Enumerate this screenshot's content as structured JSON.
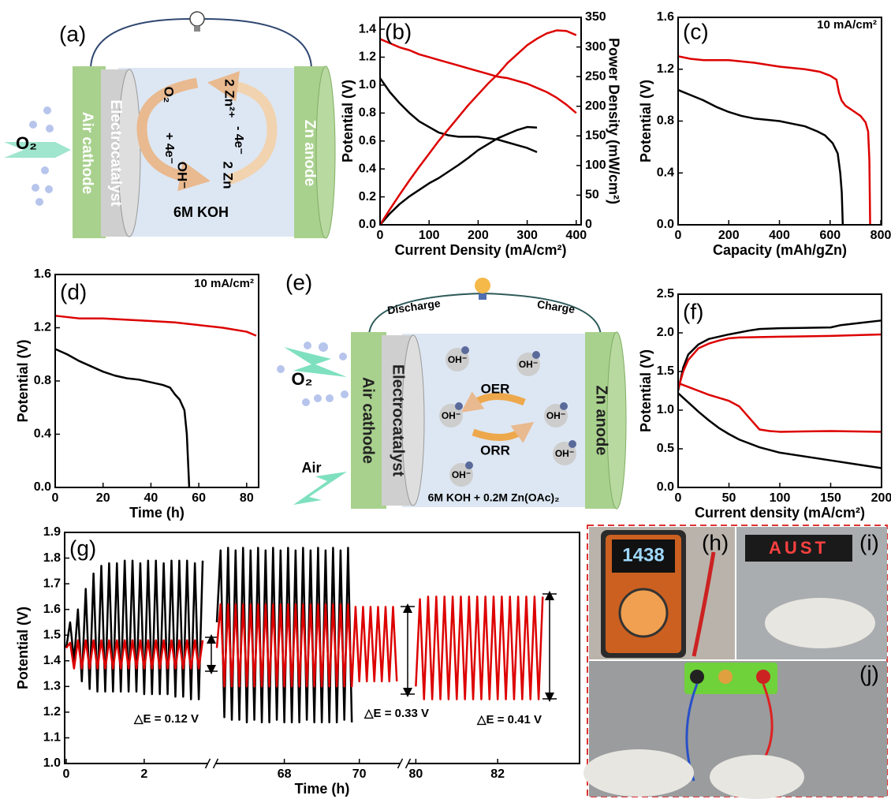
{
  "chart_data": [
    {
      "type": "line",
      "panel": "(b)",
      "xlabel": "Current Density (mA/cm²)",
      "ylabel": "Potential (V)",
      "y2label": "Power Density (mW/cm²)",
      "xlim": [
        0,
        410
      ],
      "ylim": [
        0,
        1.485
      ],
      "y2lim": [
        0,
        350
      ],
      "xticks": [
        0,
        100,
        200,
        300,
        400
      ],
      "yticks": [
        {
          "value": 0,
          "label": "0.0"
        },
        0.2,
        0.4,
        0.6,
        0.8,
        {
          "value": 1,
          "label": "1.0"
        },
        1.2,
        1.4
      ],
      "y2ticks": [
        0,
        50,
        100,
        150,
        200,
        250,
        300,
        350
      ],
      "x": [
        0,
        20,
        40,
        60,
        80,
        100,
        120,
        140,
        160,
        180,
        200,
        220,
        240,
        260,
        280,
        300,
        320,
        340,
        360,
        380,
        400
      ],
      "series": [
        {
          "color": "#000000",
          "values": [
            1.05,
            0.95,
            0.87,
            0.8,
            0.74,
            0.7,
            0.66,
            0.64,
            0.63,
            0.63,
            0.63,
            0.62,
            0.61,
            0.59,
            0.57,
            0.55,
            0.52,
            null,
            null,
            null,
            null
          ]
        },
        {
          "color": "#dd0000",
          "values": [
            1.33,
            1.3,
            1.27,
            1.25,
            1.22,
            1.2,
            1.18,
            1.16,
            1.14,
            1.12,
            1.1,
            1.08,
            1.06,
            1.05,
            1.03,
            1.01,
            0.98,
            0.95,
            0.91,
            0.86,
            0.8
          ]
        },
        {
          "color": "#000000",
          "axis": "y2",
          "values": [
            0,
            19,
            35,
            48,
            59,
            70,
            79,
            90,
            101,
            113,
            126,
            136,
            146,
            153,
            160,
            165,
            164,
            null,
            null,
            null,
            null
          ]
        },
        {
          "color": "#dd0000",
          "axis": "y2",
          "values": [
            0,
            26,
            51,
            75,
            98,
            120,
            142,
            162,
            182,
            202,
            220,
            238,
            254,
            273,
            288,
            303,
            314,
            323,
            328,
            327,
            320
          ]
        }
      ]
    },
    {
      "type": "line",
      "panel": "(c)",
      "annotation": "10 mA/cm²",
      "xlabel": "Capacity (mAh/gZn)",
      "ylabel": "Potential (V)",
      "xlim": [
        0,
        803
      ],
      "ylim": [
        0,
        1.6
      ],
      "xticks": [
        0,
        200,
        400,
        600,
        800
      ],
      "yticks": [
        {
          "value": 0,
          "label": "0.0"
        },
        0.4,
        0.8,
        1.2,
        1.6
      ],
      "series": [
        {
          "color": "#000000",
          "x": [
            0,
            50,
            100,
            150,
            200,
            250,
            300,
            350,
            400,
            450,
            500,
            550,
            580,
            610,
            630,
            640,
            646,
            650
          ],
          "values": [
            1.04,
            1.0,
            0.96,
            0.91,
            0.87,
            0.84,
            0.82,
            0.81,
            0.8,
            0.78,
            0.76,
            0.72,
            0.69,
            0.63,
            0.55,
            0.4,
            0.25,
            0
          ]
        },
        {
          "color": "#dd0000",
          "x": [
            0,
            50,
            100,
            200,
            300,
            400,
            500,
            560,
            600,
            625,
            635,
            645,
            660,
            690,
            720,
            740,
            750,
            755,
            758
          ],
          "values": [
            1.3,
            1.28,
            1.27,
            1.27,
            1.25,
            1.22,
            1.2,
            1.18,
            1.15,
            1.12,
            1.02,
            0.96,
            0.92,
            0.88,
            0.84,
            0.79,
            0.72,
            0.5,
            0
          ]
        }
      ]
    },
    {
      "type": "line",
      "panel": "(d)",
      "annotation": "10 mA/cm²",
      "xlabel": "Time (h)",
      "ylabel": "Potential (V)",
      "xlim": [
        0,
        85
      ],
      "ylim": [
        0,
        1.6
      ],
      "xticks": [
        0,
        20,
        40,
        60,
        80
      ],
      "yticks": [
        {
          "value": 0,
          "label": "0.0"
        },
        0.4,
        0.8,
        1.2,
        1.6
      ],
      "series": [
        {
          "color": "#000000",
          "x": [
            0,
            5,
            10,
            15,
            20,
            25,
            30,
            35,
            40,
            45,
            48,
            50,
            52,
            53,
            54,
            55,
            55.5,
            56
          ],
          "values": [
            1.04,
            1.0,
            0.95,
            0.91,
            0.87,
            0.84,
            0.82,
            0.81,
            0.79,
            0.77,
            0.75,
            0.7,
            0.66,
            0.62,
            0.58,
            0.4,
            0.2,
            0
          ]
        },
        {
          "color": "#dd0000",
          "x": [
            0,
            10,
            20,
            30,
            40,
            50,
            60,
            70,
            80,
            84
          ],
          "values": [
            1.29,
            1.27,
            1.27,
            1.26,
            1.25,
            1.24,
            1.22,
            1.2,
            1.17,
            1.14
          ]
        }
      ]
    },
    {
      "type": "line",
      "panel": "(f)",
      "xlabel": "Current density (mA/cm²)",
      "ylabel": "Potential (V)",
      "xlim": [
        0,
        200
      ],
      "ylim": [
        0,
        2.5
      ],
      "xticks": [
        0,
        50,
        100,
        150,
        200
      ],
      "yticks": [
        {
          "value": 0,
          "label": "0.0"
        },
        0.5,
        {
          "value": 1,
          "label": "1.0"
        },
        1.5,
        {
          "value": 2,
          "label": "2.0"
        },
        2.5
      ],
      "series": [
        {
          "color": "#000000",
          "x": [
            0,
            5,
            10,
            20,
            30,
            50,
            70,
            80,
            100,
            150,
            160,
            180,
            200
          ],
          "values": [
            1.25,
            1.55,
            1.72,
            1.85,
            1.92,
            1.98,
            2.03,
            2.05,
            2.06,
            2.07,
            2.1,
            2.13,
            2.16
          ]
        },
        {
          "color": "#dd0000",
          "x": [
            0,
            5,
            10,
            20,
            30,
            40,
            50,
            60,
            100,
            150,
            200
          ],
          "values": [
            1.27,
            1.5,
            1.65,
            1.8,
            1.86,
            1.9,
            1.93,
            1.94,
            1.95,
            1.96,
            1.98
          ]
        },
        {
          "color": "#dd0000",
          "x": [
            0,
            10,
            20,
            30,
            40,
            50,
            60,
            70,
            80,
            90,
            100,
            150,
            200
          ],
          "values": [
            1.35,
            1.3,
            1.25,
            1.2,
            1.16,
            1.12,
            1.05,
            0.9,
            0.75,
            0.73,
            0.72,
            0.73,
            0.72
          ]
        },
        {
          "color": "#000000",
          "x": [
            0,
            10,
            20,
            30,
            40,
            50,
            60,
            80,
            100,
            120,
            150,
            175,
            200
          ],
          "values": [
            1.22,
            1.1,
            0.98,
            0.87,
            0.77,
            0.69,
            0.62,
            0.52,
            0.45,
            0.41,
            0.35,
            0.3,
            0.25
          ]
        }
      ]
    },
    {
      "type": "line",
      "panel": "(g)",
      "xlabel": "Time (h)",
      "ylabel": "Potential (V)",
      "annotations": [
        "△E = 0.12 V",
        "△E = 0.33 V",
        "△E = 0.41 V"
      ],
      "xlim": [
        0,
        84.0
      ],
      "xbreaks": [
        [
          3.6,
          66.2
        ],
        [
          71.1,
          79.8
        ]
      ],
      "ylim": [
        1.0,
        1.9
      ],
      "xticks": [
        0,
        2,
        68,
        70,
        80,
        82
      ],
      "yticks": [
        {
          "value": 1,
          "label": "1.0"
        },
        1.1,
        1.2,
        1.3,
        1.4,
        1.5,
        1.6,
        1.7,
        1.8,
        1.9
      ],
      "x": [
        0,
        0.1,
        0.2,
        0.3,
        0.4,
        0.5,
        0.6,
        0.7,
        0.8,
        0.9,
        1,
        1.1,
        1.2,
        1.3,
        1.4,
        1.5,
        1.6,
        1.7,
        1.8,
        1.9,
        2,
        2.1,
        2.2,
        2.3,
        2.4,
        2.5,
        2.6,
        2.7,
        2.8,
        2.9,
        3,
        3.1,
        3.2,
        3.3,
        3.4,
        3.5,
        3.6,
        66.2,
        66.3,
        66.4,
        66.5,
        66.6,
        66.7,
        66.8,
        66.9,
        67,
        67.1,
        67.2,
        67.3,
        67.4,
        67.5,
        67.6,
        67.7,
        67.8,
        67.9,
        68,
        68.1,
        68.2,
        68.3,
        68.4,
        68.5,
        68.6,
        68.7,
        68.8,
        68.9,
        69,
        69.1,
        69.2,
        69.3,
        69.4,
        69.5,
        69.6,
        69.7,
        69.8,
        69.9,
        70,
        70.1,
        70.2,
        70.3,
        70.4,
        70.5,
        70.6,
        70.7,
        70.8,
        70.9,
        71,
        71.1,
        80,
        80.1,
        80.2,
        80.3,
        80.4,
        80.5,
        80.6,
        80.7,
        80.8,
        80.9,
        81,
        81.1,
        81.2,
        81.3,
        81.4,
        81.5,
        81.6,
        81.7,
        81.8,
        81.9,
        82,
        82.1,
        82.2,
        82.3,
        82.4,
        82.5,
        82.6,
        82.7,
        82.8,
        82.9,
        83,
        83.1
      ],
      "series": [
        {
          "color": "#000000",
          "values": [
            1.45,
            1.55,
            1.4,
            1.6,
            1.32,
            1.68,
            1.29,
            1.74,
            1.28,
            1.77,
            1.28,
            1.78,
            1.28,
            1.78,
            1.28,
            1.79,
            1.28,
            1.79,
            1.28,
            1.78,
            1.27,
            1.79,
            1.27,
            1.79,
            1.27,
            1.78,
            1.27,
            1.79,
            1.26,
            1.79,
            1.26,
            1.79,
            1.25,
            1.78,
            1.25,
            1.79,
            null,
            1.55,
            1.83,
            1.18,
            1.84,
            1.17,
            1.83,
            1.17,
            1.84,
            1.16,
            1.83,
            1.17,
            1.84,
            1.16,
            1.83,
            1.16,
            1.84,
            1.17,
            1.83,
            1.16,
            1.84,
            1.16,
            1.83,
            1.16,
            1.84,
            1.17,
            1.83,
            1.16,
            1.84,
            1.16,
            1.83,
            1.16,
            1.84,
            1.16,
            1.83,
            1.17,
            1.84,
            1.16,
            null,
            null,
            null,
            null,
            null,
            null,
            null,
            null,
            null,
            null,
            null,
            null,
            null,
            null,
            null,
            null,
            null,
            null,
            null,
            null,
            null,
            null,
            null,
            null,
            null,
            null,
            null,
            null,
            null,
            null,
            null,
            null,
            null,
            null,
            null,
            null,
            null,
            null,
            null,
            null,
            null,
            null,
            null,
            null,
            null
          ]
        },
        {
          "color": "#dd0000",
          "values": [
            1.45,
            1.47,
            1.37,
            1.48,
            1.37,
            1.48,
            1.37,
            1.48,
            1.37,
            1.48,
            1.37,
            1.48,
            1.37,
            1.48,
            1.37,
            1.48,
            1.37,
            1.48,
            1.37,
            1.48,
            1.37,
            1.48,
            1.37,
            1.48,
            1.37,
            1.48,
            1.37,
            1.48,
            1.37,
            1.48,
            1.37,
            1.48,
            1.37,
            1.48,
            1.37,
            1.48,
            null,
            1.45,
            1.62,
            1.3,
            1.62,
            1.3,
            1.62,
            1.3,
            1.62,
            1.3,
            1.62,
            1.3,
            1.62,
            1.3,
            1.62,
            1.3,
            1.62,
            1.3,
            1.62,
            1.3,
            1.62,
            1.3,
            1.62,
            1.3,
            1.62,
            1.3,
            1.62,
            1.3,
            1.62,
            1.3,
            1.62,
            1.3,
            1.62,
            1.3,
            1.62,
            1.3,
            1.62,
            1.3,
            1.61,
            1.32,
            1.61,
            1.32,
            1.61,
            1.32,
            1.61,
            1.32,
            1.61,
            1.32,
            1.61,
            1.32,
            null,
            1.3,
            1.64,
            1.25,
            1.65,
            1.25,
            1.65,
            1.25,
            1.65,
            1.25,
            1.65,
            1.25,
            1.65,
            1.25,
            1.65,
            1.25,
            1.65,
            1.25,
            1.65,
            1.25,
            1.65,
            1.25,
            1.65,
            1.25,
            1.65,
            1.25,
            1.65,
            1.25,
            1.65,
            1.25,
            1.65,
            1.25,
            1.65
          ]
        }
      ]
    }
  ],
  "diagram_a": {
    "label": "(a)",
    "gas": "O₂",
    "cathode": "Air cathode",
    "catalyst": "Electrocatalyst",
    "anode": "Zn anode",
    "electrolyte": "6M KOH",
    "species": [
      "O₂",
      "2 Zn²⁺",
      "+ 4e⁻",
      "- 4e⁻",
      "OH⁻",
      "2 Zn"
    ]
  },
  "diagram_e": {
    "label": "(e)",
    "discharge": "Discharge",
    "charge": "Charge",
    "gas": "O₂",
    "air": "Air",
    "cathode": "Air cathode",
    "catalyst": "Electrocatalyst",
    "anode": "Zn anode",
    "oer": "OER",
    "orr": "ORR",
    "ions": [
      "OH⁻",
      "OH⁻",
      "OH⁻",
      "OH⁻",
      "OH⁻",
      "OH⁻"
    ],
    "electrolyte": "6M KOH + 0.2M Zn(OAc)₂"
  },
  "photos": {
    "h": "(h)",
    "i": "(i)",
    "j": "(j)",
    "meter_display": "1438",
    "led_sign": "AUST"
  }
}
